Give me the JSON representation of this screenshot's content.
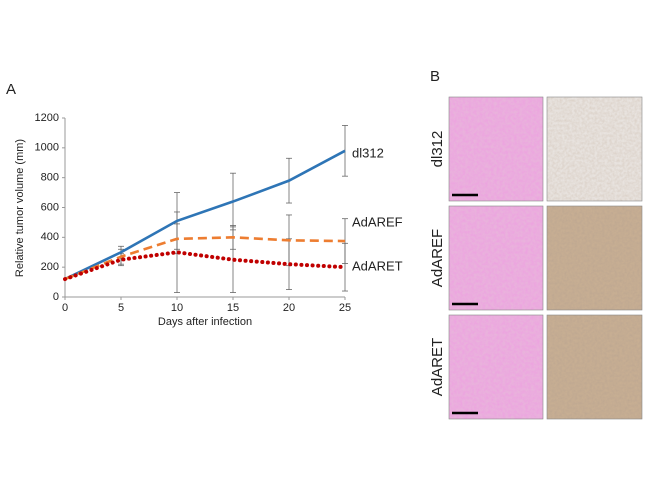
{
  "panel_labels": [
    "A",
    "B"
  ],
  "panel_b": {
    "row_labels": [
      "dl312",
      "AdAREF",
      "AdARET"
    ]
  },
  "chart_data": {
    "type": "line",
    "x_label": "Days after infection",
    "y_label": "Relative tumor volume (mm)",
    "x": [
      0,
      5,
      10,
      15,
      20,
      25
    ],
    "xlim": [
      0,
      25
    ],
    "xticks": [
      0,
      5,
      10,
      15,
      20,
      25
    ],
    "ylim": [
      0,
      1200
    ],
    "yticks": [
      0,
      200,
      400,
      600,
      800,
      1000,
      1200
    ],
    "grid": false,
    "series": [
      {
        "name": "dl312",
        "color": "#2e75b6",
        "line_style": "solid",
        "values": [
          120,
          300,
          510,
          640,
          780,
          980
        ],
        "errors": [
          0,
          40,
          190,
          190,
          150,
          170
        ]
      },
      {
        "name": "AdAREF",
        "color": "#ed7d31",
        "line_style": "dashed",
        "values": [
          120,
          270,
          390,
          400,
          380,
          375
        ],
        "errors": [
          0,
          50,
          100,
          80,
          170,
          150
        ]
      },
      {
        "name": "AdARET",
        "color": "#c00000",
        "line_style": "dotted",
        "values": [
          120,
          250,
          300,
          250,
          220,
          200
        ],
        "errors": [
          0,
          40,
          270,
          220,
          170,
          160
        ]
      }
    ]
  }
}
